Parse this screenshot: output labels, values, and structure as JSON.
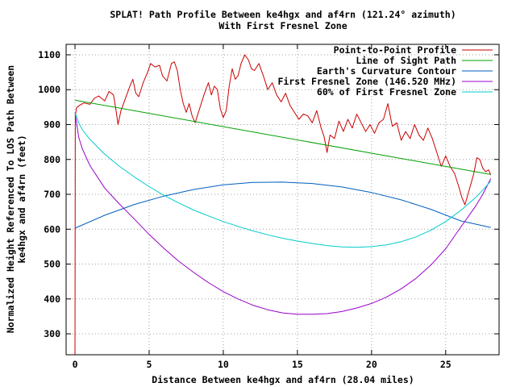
{
  "chart_data": {
    "type": "line",
    "title": "SPLAT! Path Profile Between ke4hgx and af4rn (121.24° azimuth)",
    "subtitle": "With First Fresnel Zone",
    "xlabel": "Distance Between ke4hgx and af4rn (28.04 miles)",
    "ylabel_line1": "Normalized Height Referenced To LOS Path Between",
    "ylabel_line2": "ke4hgx and af4rn (feet)",
    "xlim": [
      -0.6,
      28.6
    ],
    "ylim": [
      240,
      1130
    ],
    "x_ticks": [
      0,
      5,
      10,
      15,
      20,
      25
    ],
    "y_ticks": [
      300,
      400,
      500,
      600,
      700,
      800,
      900,
      1000,
      1100
    ],
    "grid": true,
    "legend_position": "top-right",
    "series": [
      {
        "name": "Point-to-Point Profile",
        "color": "#cc0000",
        "points": [
          [
            0,
            240
          ],
          [
            0.02,
            925
          ],
          [
            0.1,
            948
          ],
          [
            0.3,
            955
          ],
          [
            0.6,
            962
          ],
          [
            1.0,
            958
          ],
          [
            1.3,
            975
          ],
          [
            1.6,
            982
          ],
          [
            2.0,
            968
          ],
          [
            2.3,
            995
          ],
          [
            2.6,
            985
          ],
          [
            2.75,
            945
          ],
          [
            2.9,
            900
          ],
          [
            3.1,
            940
          ],
          [
            3.4,
            975
          ],
          [
            3.7,
            1010
          ],
          [
            3.9,
            1030
          ],
          [
            4.1,
            990
          ],
          [
            4.3,
            980
          ],
          [
            4.6,
            1020
          ],
          [
            4.9,
            1050
          ],
          [
            5.1,
            1075
          ],
          [
            5.4,
            1065
          ],
          [
            5.7,
            1070
          ],
          [
            5.9,
            1040
          ],
          [
            6.2,
            1025
          ],
          [
            6.5,
            1075
          ],
          [
            6.7,
            1080
          ],
          [
            6.9,
            1055
          ],
          [
            7.1,
            1000
          ],
          [
            7.3,
            960
          ],
          [
            7.5,
            935
          ],
          [
            7.7,
            960
          ],
          [
            7.9,
            925
          ],
          [
            8.1,
            905
          ],
          [
            8.4,
            945
          ],
          [
            8.7,
            985
          ],
          [
            9.0,
            1020
          ],
          [
            9.2,
            985
          ],
          [
            9.4,
            1010
          ],
          [
            9.6,
            1000
          ],
          [
            9.8,
            945
          ],
          [
            10.0,
            920
          ],
          [
            10.2,
            940
          ],
          [
            10.4,
            1010
          ],
          [
            10.6,
            1060
          ],
          [
            10.8,
            1030
          ],
          [
            11.0,
            1040
          ],
          [
            11.2,
            1075
          ],
          [
            11.45,
            1100
          ],
          [
            11.7,
            1085
          ],
          [
            11.9,
            1060
          ],
          [
            12.1,
            1055
          ],
          [
            12.4,
            1075
          ],
          [
            12.7,
            1040
          ],
          [
            13.0,
            1000
          ],
          [
            13.3,
            1020
          ],
          [
            13.6,
            985
          ],
          [
            13.9,
            965
          ],
          [
            14.2,
            990
          ],
          [
            14.5,
            955
          ],
          [
            14.8,
            935
          ],
          [
            15.1,
            915
          ],
          [
            15.4,
            930
          ],
          [
            15.7,
            925
          ],
          [
            16.0,
            905
          ],
          [
            16.3,
            940
          ],
          [
            16.6,
            890
          ],
          [
            16.8,
            865
          ],
          [
            17.0,
            820
          ],
          [
            17.2,
            870
          ],
          [
            17.5,
            860
          ],
          [
            17.8,
            910
          ],
          [
            18.1,
            880
          ],
          [
            18.4,
            915
          ],
          [
            18.7,
            890
          ],
          [
            19.0,
            930
          ],
          [
            19.3,
            905
          ],
          [
            19.6,
            880
          ],
          [
            19.9,
            900
          ],
          [
            20.2,
            875
          ],
          [
            20.5,
            905
          ],
          [
            20.8,
            915
          ],
          [
            21.1,
            960
          ],
          [
            21.4,
            895
          ],
          [
            21.7,
            905
          ],
          [
            22.0,
            855
          ],
          [
            22.3,
            880
          ],
          [
            22.6,
            860
          ],
          [
            22.9,
            900
          ],
          [
            23.2,
            870
          ],
          [
            23.5,
            855
          ],
          [
            23.8,
            890
          ],
          [
            24.1,
            860
          ],
          [
            24.4,
            820
          ],
          [
            24.7,
            780
          ],
          [
            25.0,
            810
          ],
          [
            25.3,
            780
          ],
          [
            25.6,
            760
          ],
          [
            25.9,
            720
          ],
          [
            26.1,
            690
          ],
          [
            26.3,
            670
          ],
          [
            26.5,
            700
          ],
          [
            26.7,
            730
          ],
          [
            26.9,
            760
          ],
          [
            27.1,
            805
          ],
          [
            27.3,
            800
          ],
          [
            27.5,
            775
          ],
          [
            27.7,
            765
          ],
          [
            27.9,
            770
          ],
          [
            28.04,
            755
          ]
        ]
      },
      {
        "name": "Line of Sight Path",
        "color": "#00a000",
        "points": [
          [
            0,
            970
          ],
          [
            28.04,
            757
          ]
        ]
      },
      {
        "name": "Earth's Curvature Contour",
        "color": "#005fbf",
        "points": [
          [
            0,
            603
          ],
          [
            2,
            640
          ],
          [
            4,
            671
          ],
          [
            6,
            695
          ],
          [
            8,
            714
          ],
          [
            10,
            727
          ],
          [
            12,
            734
          ],
          [
            14,
            735
          ],
          [
            16,
            731
          ],
          [
            18,
            721
          ],
          [
            20,
            705
          ],
          [
            22,
            684
          ],
          [
            24,
            657
          ],
          [
            26,
            624
          ],
          [
            28.04,
            605
          ]
        ]
      },
      {
        "name": "First Fresnel Zone (146.520 MHz)",
        "color": "#9900cc",
        "points": [
          [
            0,
            935
          ],
          [
            0.25,
            864
          ],
          [
            0.5,
            830
          ],
          [
            1,
            783
          ],
          [
            2,
            718
          ],
          [
            3,
            672
          ],
          [
            4,
            629
          ],
          [
            5,
            585
          ],
          [
            6,
            545
          ],
          [
            7,
            508
          ],
          [
            8,
            476
          ],
          [
            9,
            447
          ],
          [
            10,
            421
          ],
          [
            11,
            400
          ],
          [
            12,
            382
          ],
          [
            13,
            369
          ],
          [
            14,
            360
          ],
          [
            15,
            356
          ],
          [
            16,
            356
          ],
          [
            17,
            358
          ],
          [
            18,
            364
          ],
          [
            19,
            374
          ],
          [
            20,
            387
          ],
          [
            21,
            405
          ],
          [
            22,
            429
          ],
          [
            23,
            459
          ],
          [
            24,
            497
          ],
          [
            25,
            544
          ],
          [
            26,
            605
          ],
          [
            27,
            665
          ],
          [
            27.5,
            700
          ],
          [
            28.04,
            745
          ]
        ]
      },
      {
        "name": "60% of First Fresnel Zone",
        "color": "#00cccc",
        "points": [
          [
            0,
            935
          ],
          [
            0.25,
            905
          ],
          [
            0.5,
            885
          ],
          [
            1,
            858
          ],
          [
            2,
            815
          ],
          [
            3,
            780
          ],
          [
            4,
            750
          ],
          [
            5,
            722
          ],
          [
            6,
            697
          ],
          [
            7,
            675
          ],
          [
            8,
            655
          ],
          [
            9,
            638
          ],
          [
            10,
            622
          ],
          [
            11,
            608
          ],
          [
            12,
            595
          ],
          [
            13,
            584
          ],
          [
            14,
            574
          ],
          [
            15,
            566
          ],
          [
            16,
            559
          ],
          [
            17,
            553
          ],
          [
            18,
            549
          ],
          [
            19,
            548
          ],
          [
            20,
            550
          ],
          [
            21,
            555
          ],
          [
            22,
            564
          ],
          [
            23,
            578
          ],
          [
            24,
            597
          ],
          [
            25,
            622
          ],
          [
            26,
            653
          ],
          [
            27,
            690
          ],
          [
            27.5,
            712
          ],
          [
            28.04,
            738
          ]
        ]
      }
    ]
  }
}
